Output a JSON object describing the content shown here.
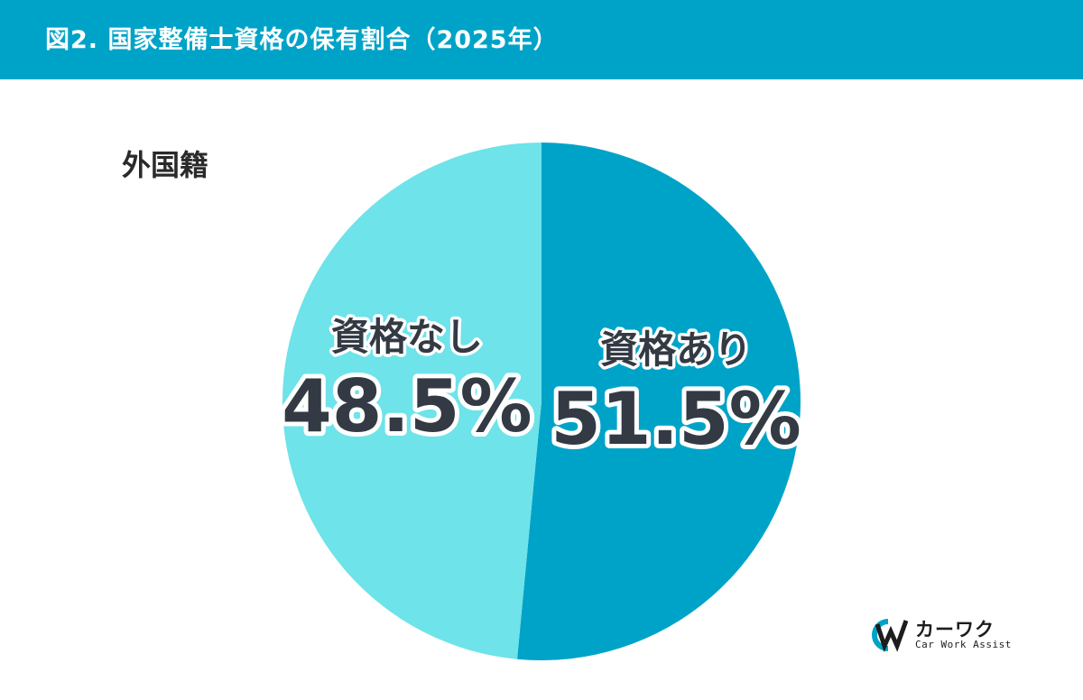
{
  "header": {
    "title": "図2. 国家整備士資格の保有割合（2025年）",
    "background": "#00a3c8"
  },
  "subtitle": "外国籍",
  "chart_data": {
    "type": "pie",
    "start": "12 o'clock",
    "direction": "clockwise",
    "slices": [
      {
        "label": "資格あり",
        "value": 51.5,
        "value_label": "51.5%",
        "color": "#00a3c8"
      },
      {
        "label": "資格なし",
        "value": 48.5,
        "value_label": "48.5%",
        "color": "#6ee3e9"
      }
    ]
  },
  "logo": {
    "kana": "カーワク",
    "english": "Car Work Assist"
  }
}
